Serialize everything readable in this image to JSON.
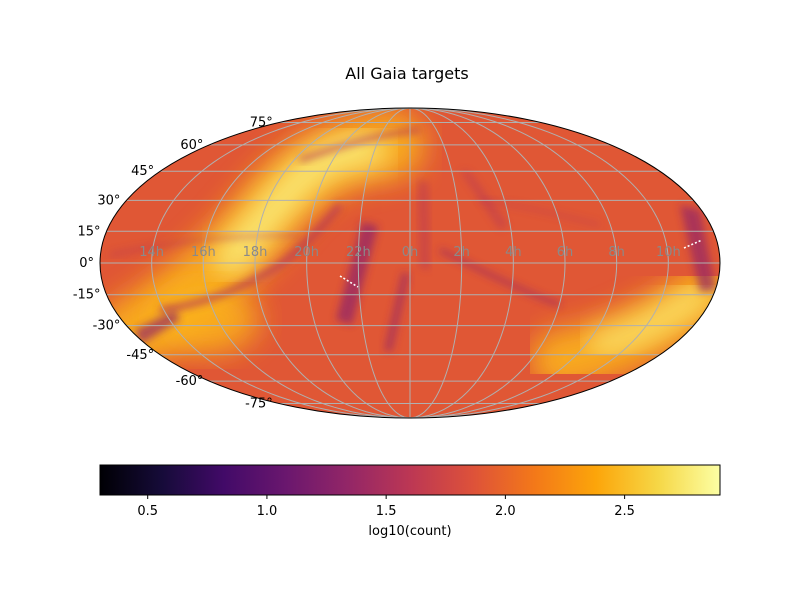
{
  "chart_data": {
    "type": "heatmap",
    "projection": "mollweide",
    "title": "All Gaia targets",
    "colormap": "inferno",
    "colorbar": {
      "label": "log10(count)",
      "range": [
        0.3,
        2.9
      ],
      "ticks": [
        "0.5",
        "1.0",
        "1.5",
        "2.0",
        "2.5"
      ],
      "tick_values": [
        0.5,
        1.0,
        1.5,
        2.0,
        2.5
      ],
      "placement": "bottom"
    },
    "dec_ticks": [
      {
        "value": 75,
        "label": "75°"
      },
      {
        "value": 60,
        "label": "60°"
      },
      {
        "value": 45,
        "label": "45°"
      },
      {
        "value": 30,
        "label": "30°"
      },
      {
        "value": 15,
        "label": "15°"
      },
      {
        "value": 0,
        "label": "0°"
      },
      {
        "value": -15,
        "label": "-15°"
      },
      {
        "value": -30,
        "label": "-30°"
      },
      {
        "value": -45,
        "label": "-45°"
      },
      {
        "value": -60,
        "label": "-60°"
      },
      {
        "value": -75,
        "label": "-75°"
      }
    ],
    "ra_ticks": [
      {
        "lon": -150,
        "label": "14h"
      },
      {
        "lon": -120,
        "label": "16h"
      },
      {
        "lon": -90,
        "label": "18h"
      },
      {
        "lon": -60,
        "label": "20h"
      },
      {
        "lon": -30,
        "label": "22h"
      },
      {
        "lon": 0,
        "label": "0h"
      },
      {
        "lon": 30,
        "label": "2h"
      },
      {
        "lon": 60,
        "label": "4h"
      },
      {
        "lon": 90,
        "label": "6h"
      },
      {
        "lon": 120,
        "label": "8h"
      },
      {
        "lon": 150,
        "label": "10h"
      }
    ],
    "grid": true,
    "typical_value": 1.9,
    "galactic_plane_peak": 2.8
  }
}
